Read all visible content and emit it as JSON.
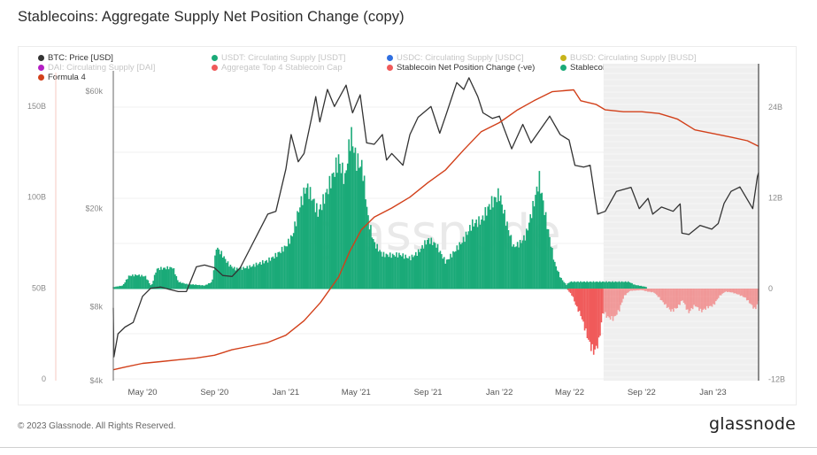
{
  "page": {
    "title": "Stablecoins: Aggregate Supply Net Position Change (copy)",
    "footer_copyright": "© 2023 Glassnode. All Rights Reserved.",
    "footer_logo": "glassnode",
    "watermark": "glassnode"
  },
  "legend": [
    {
      "label": "BTC: Price [USD]",
      "color": "#333333",
      "active": true
    },
    {
      "label": "USDT: Circulating Supply [USDT]",
      "color": "#1aaa78",
      "active": false
    },
    {
      "label": "USDC: Circulating Supply [USDC]",
      "color": "#2f6fe0",
      "active": false
    },
    {
      "label": "BUSD: Circulating Supply [BUSD]",
      "color": "#c8b41a",
      "active": false
    },
    {
      "label": "DAI: Circulating Supply [DAI]",
      "color": "#b31fc4",
      "active": false
    },
    {
      "label": "Aggregate Top 4 Stablecoin Cap",
      "color": "#f05a5a",
      "active": false
    },
    {
      "label": "Stablecoin Net Position Change (-ve)",
      "color": "#f05a5a",
      "active": true
    },
    {
      "label": "Stablecoin Net Position Change (+ve)",
      "color": "#1aaa78",
      "active": true
    },
    {
      "label": "Formula 4",
      "color": "#d2401a",
      "active": true
    }
  ],
  "chart_data": {
    "type": "line",
    "title": "Stablecoins: Aggregate Supply Net Position Change (copy)",
    "xlabel": "",
    "x_range": [
      "2020-03-12",
      "2023-03-20"
    ],
    "x_ticks": [
      {
        "date": "2020-05-01",
        "label": "May '20"
      },
      {
        "date": "2020-09-01",
        "label": "Sep '20"
      },
      {
        "date": "2021-01-01",
        "label": "Jan '21"
      },
      {
        "date": "2021-05-01",
        "label": "May '21"
      },
      {
        "date": "2021-09-01",
        "label": "Sep '21"
      },
      {
        "date": "2022-01-01",
        "label": "Jan '22"
      },
      {
        "date": "2022-05-01",
        "label": "May '22"
      },
      {
        "date": "2022-09-01",
        "label": "Sep '22"
      },
      {
        "date": "2023-01-01",
        "label": "Jan '23"
      }
    ],
    "axes": {
      "left_supply": {
        "unit": "B",
        "range": [
          0,
          165
        ],
        "ticks": [
          {
            "v": 0,
            "label": "0"
          },
          {
            "v": 50,
            "label": "50B"
          },
          {
            "v": 100,
            "label": "100B"
          },
          {
            "v": 150,
            "label": "150B"
          }
        ]
      },
      "left_price": {
        "unit": "USD",
        "scale": "log",
        "range": [
          4000,
          72000
        ],
        "ticks": [
          {
            "v": 4000,
            "label": "$4k"
          },
          {
            "v": 8000,
            "label": "$8k"
          },
          {
            "v": 20000,
            "label": "$20k"
          },
          {
            "v": 60000,
            "label": "$60k"
          }
        ]
      },
      "right_net": {
        "unit": "B",
        "range": [
          -12,
          27
        ],
        "ticks": [
          {
            "v": -12,
            "label": "-12B"
          },
          {
            "v": 0,
            "label": "0"
          },
          {
            "v": 12,
            "label": "12B"
          },
          {
            "v": 24,
            "label": "24B"
          }
        ]
      }
    },
    "grid": true,
    "legend_position": "top-left",
    "shaded_region": {
      "from": "2022-06-28",
      "to": "2023-03-20",
      "note": "grey shaded period"
    },
    "series": [
      {
        "name": "BTC: Price [USD]",
        "axis": "left_price",
        "type": "line",
        "color": "#333333",
        "points": [
          [
            "2020-03-12",
            7900
          ],
          [
            "2020-03-13",
            5000
          ],
          [
            "2020-03-20",
            6200
          ],
          [
            "2020-04-01",
            6600
          ],
          [
            "2020-04-15",
            6900
          ],
          [
            "2020-05-01",
            8800
          ],
          [
            "2020-05-15",
            9500
          ],
          [
            "2020-06-01",
            9600
          ],
          [
            "2020-06-15",
            9400
          ],
          [
            "2020-07-01",
            9200
          ],
          [
            "2020-07-15",
            9200
          ],
          [
            "2020-08-01",
            11600
          ],
          [
            "2020-08-15",
            11800
          ],
          [
            "2020-09-01",
            11500
          ],
          [
            "2020-09-15",
            10700
          ],
          [
            "2020-10-01",
            10600
          ],
          [
            "2020-10-15",
            11500
          ],
          [
            "2020-11-01",
            13800
          ],
          [
            "2020-11-15",
            16000
          ],
          [
            "2020-12-01",
            19000
          ],
          [
            "2020-12-15",
            19500
          ],
          [
            "2021-01-01",
            29000
          ],
          [
            "2021-01-10",
            40000
          ],
          [
            "2021-01-22",
            31000
          ],
          [
            "2021-02-01",
            33500
          ],
          [
            "2021-02-15",
            48000
          ],
          [
            "2021-02-21",
            57000
          ],
          [
            "2021-02-28",
            45000
          ],
          [
            "2021-03-13",
            61000
          ],
          [
            "2021-03-25",
            52000
          ],
          [
            "2021-04-14",
            63500
          ],
          [
            "2021-04-25",
            49000
          ],
          [
            "2021-05-08",
            58000
          ],
          [
            "2021-05-19",
            37000
          ],
          [
            "2021-06-01",
            36500
          ],
          [
            "2021-06-15",
            40000
          ],
          [
            "2021-06-22",
            31500
          ],
          [
            "2021-07-01",
            33500
          ],
          [
            "2021-07-20",
            30000
          ],
          [
            "2021-08-01",
            40000
          ],
          [
            "2021-08-15",
            47000
          ],
          [
            "2021-09-06",
            52000
          ],
          [
            "2021-09-21",
            40500
          ],
          [
            "2021-10-01",
            47500
          ],
          [
            "2021-10-20",
            65000
          ],
          [
            "2021-11-01",
            61000
          ],
          [
            "2021-11-10",
            68000
          ],
          [
            "2021-11-25",
            57000
          ],
          [
            "2021-12-04",
            49000
          ],
          [
            "2021-12-20",
            46500
          ],
          [
            "2022-01-01",
            47500
          ],
          [
            "2022-01-22",
            35000
          ],
          [
            "2022-02-10",
            44000
          ],
          [
            "2022-02-24",
            37000
          ],
          [
            "2022-03-28",
            47500
          ],
          [
            "2022-04-15",
            40000
          ],
          [
            "2022-04-30",
            38000
          ],
          [
            "2022-05-10",
            30000
          ],
          [
            "2022-05-25",
            29500
          ],
          [
            "2022-06-05",
            30000
          ],
          [
            "2022-06-13",
            22500
          ],
          [
            "2022-06-18",
            19000
          ],
          [
            "2022-07-01",
            19500
          ],
          [
            "2022-07-20",
            23500
          ],
          [
            "2022-08-14",
            24400
          ],
          [
            "2022-08-28",
            20000
          ],
          [
            "2022-09-12",
            22000
          ],
          [
            "2022-09-20",
            19000
          ],
          [
            "2022-10-05",
            20300
          ],
          [
            "2022-10-25",
            19500
          ],
          [
            "2022-11-06",
            20900
          ],
          [
            "2022-11-09",
            15900
          ],
          [
            "2022-11-21",
            15700
          ],
          [
            "2022-12-10",
            17100
          ],
          [
            "2022-12-30",
            16500
          ],
          [
            "2023-01-10",
            17400
          ],
          [
            "2023-01-20",
            21000
          ],
          [
            "2023-02-01",
            23500
          ],
          [
            "2023-02-16",
            24500
          ],
          [
            "2023-03-10",
            20000
          ],
          [
            "2023-03-18",
            27000
          ],
          [
            "2023-03-20",
            28000
          ]
        ]
      },
      {
        "name": "Formula 4",
        "axis": "left_supply",
        "type": "line",
        "color": "#d2401a",
        "points": [
          [
            "2020-03-12",
            5
          ],
          [
            "2020-04-01",
            6.5
          ],
          [
            "2020-05-01",
            8.5
          ],
          [
            "2020-06-01",
            9.5
          ],
          [
            "2020-07-01",
            10.5
          ],
          [
            "2020-08-01",
            11.5
          ],
          [
            "2020-09-01",
            13
          ],
          [
            "2020-10-01",
            16
          ],
          [
            "2020-11-01",
            18
          ],
          [
            "2020-12-01",
            20
          ],
          [
            "2021-01-01",
            24
          ],
          [
            "2021-02-01",
            32
          ],
          [
            "2021-03-01",
            42
          ],
          [
            "2021-04-01",
            56
          ],
          [
            "2021-04-20",
            70
          ],
          [
            "2021-05-10",
            82
          ],
          [
            "2021-06-01",
            89
          ],
          [
            "2021-07-01",
            94
          ],
          [
            "2021-08-01",
            100
          ],
          [
            "2021-09-01",
            108
          ],
          [
            "2021-10-01",
            115
          ],
          [
            "2021-11-01",
            126
          ],
          [
            "2021-12-01",
            136
          ],
          [
            "2022-01-01",
            141
          ],
          [
            "2022-02-01",
            148
          ],
          [
            "2022-03-01",
            153
          ],
          [
            "2022-04-01",
            158
          ],
          [
            "2022-05-08",
            159
          ],
          [
            "2022-05-20",
            153
          ],
          [
            "2022-06-15",
            151
          ],
          [
            "2022-07-01",
            148
          ],
          [
            "2022-08-01",
            147
          ],
          [
            "2022-09-01",
            147
          ],
          [
            "2022-10-01",
            146
          ],
          [
            "2022-11-01",
            143
          ],
          [
            "2022-12-01",
            137
          ],
          [
            "2023-01-01",
            135
          ],
          [
            "2023-02-01",
            133
          ],
          [
            "2023-03-01",
            131
          ],
          [
            "2023-03-20",
            128
          ]
        ]
      },
      {
        "name": "Stablecoin Net Position Change (+ve)",
        "axis": "right_net",
        "type": "bar",
        "color": "#1aaa78",
        "points": [
          [
            "2020-03-12",
            0.2
          ],
          [
            "2020-03-28",
            0.4
          ],
          [
            "2020-04-08",
            1.7
          ],
          [
            "2020-04-22",
            1.8
          ],
          [
            "2020-05-06",
            1.6
          ],
          [
            "2020-05-16",
            0.3
          ],
          [
            "2020-05-25",
            2.6
          ],
          [
            "2020-06-08",
            2.7
          ],
          [
            "2020-06-22",
            2.8
          ],
          [
            "2020-07-01",
            0.9
          ],
          [
            "2020-07-15",
            0.6
          ],
          [
            "2020-08-01",
            0.5
          ],
          [
            "2020-08-15",
            0.4
          ],
          [
            "2020-08-28",
            0.9
          ],
          [
            "2020-09-04",
            5.5
          ],
          [
            "2020-09-15",
            4.4
          ],
          [
            "2020-09-25",
            3.2
          ],
          [
            "2020-10-06",
            2.6
          ],
          [
            "2020-10-20",
            2.7
          ],
          [
            "2020-11-01",
            2.9
          ],
          [
            "2020-11-15",
            3.3
          ],
          [
            "2020-12-01",
            3.7
          ],
          [
            "2020-12-15",
            4.4
          ],
          [
            "2021-01-01",
            5.6
          ],
          [
            "2021-01-12",
            7.0
          ],
          [
            "2021-01-25",
            11.0
          ],
          [
            "2021-02-05",
            13.5
          ],
          [
            "2021-02-15",
            12.0
          ],
          [
            "2021-02-25",
            10.0
          ],
          [
            "2021-03-08",
            12.0
          ],
          [
            "2021-03-20",
            14.5
          ],
          [
            "2021-04-01",
            17.0
          ],
          [
            "2021-04-12",
            14.5
          ],
          [
            "2021-04-22",
            20.5
          ],
          [
            "2021-05-01",
            17.0
          ],
          [
            "2021-05-12",
            16.0
          ],
          [
            "2021-05-22",
            9.0
          ],
          [
            "2021-06-01",
            6.0
          ],
          [
            "2021-06-15",
            4.5
          ],
          [
            "2021-07-01",
            4.4
          ],
          [
            "2021-07-15",
            4.5
          ],
          [
            "2021-08-01",
            4.0
          ],
          [
            "2021-08-15",
            4.8
          ],
          [
            "2021-09-01",
            6.5
          ],
          [
            "2021-09-15",
            5.8
          ],
          [
            "2021-10-01",
            3.5
          ],
          [
            "2021-10-15",
            4.8
          ],
          [
            "2021-11-01",
            6.5
          ],
          [
            "2021-11-15",
            8.5
          ],
          [
            "2021-12-01",
            9.0
          ],
          [
            "2021-12-15",
            11.0
          ],
          [
            "2022-01-01",
            12.5
          ],
          [
            "2022-01-12",
            9.0
          ],
          [
            "2022-01-25",
            5.5
          ],
          [
            "2022-02-05",
            6.0
          ],
          [
            "2022-02-15",
            7.0
          ],
          [
            "2022-02-28",
            11.0
          ],
          [
            "2022-03-10",
            14.5
          ],
          [
            "2022-03-22",
            9.0
          ],
          [
            "2022-04-05",
            3.5
          ],
          [
            "2022-04-15",
            1.5
          ],
          [
            "2022-04-25",
            0.5
          ],
          [
            "2022-05-02",
            0.9
          ],
          [
            "2022-08-10",
            0.9
          ],
          [
            "2022-08-20",
            0.5
          ],
          [
            "2022-09-10",
            0.2
          ]
        ]
      },
      {
        "name": "Stablecoin Net Position Change (-ve)",
        "axis": "right_net",
        "type": "bar",
        "color": "#f05a5a",
        "points": [
          [
            "2022-04-28",
            -0.2
          ],
          [
            "2022-05-06",
            -1.0
          ],
          [
            "2022-05-12",
            -2.3
          ],
          [
            "2022-05-20",
            -3.5
          ],
          [
            "2022-05-28",
            -5.5
          ],
          [
            "2022-06-05",
            -7.5
          ],
          [
            "2022-06-12",
            -8.4
          ],
          [
            "2022-06-20",
            -7.0
          ],
          [
            "2022-06-27",
            -3.0
          ],
          [
            "2022-07-05",
            -3.8
          ],
          [
            "2022-07-15",
            -4.0
          ],
          [
            "2022-07-25",
            -2.8
          ],
          [
            "2022-08-02",
            -1.0
          ],
          [
            "2022-08-12",
            -0.3
          ],
          [
            "2022-09-01",
            -0.2
          ],
          [
            "2022-09-12",
            -0.4
          ],
          [
            "2022-09-22",
            -0.5
          ],
          [
            "2022-10-01",
            -1.2
          ],
          [
            "2022-10-12",
            -2.2
          ],
          [
            "2022-10-22",
            -3.0
          ],
          [
            "2022-11-01",
            -2.5
          ],
          [
            "2022-11-10",
            -1.5
          ],
          [
            "2022-11-20",
            -3.2
          ],
          [
            "2022-12-01",
            -2.2
          ],
          [
            "2022-12-12",
            -3.0
          ],
          [
            "2022-12-22",
            -2.5
          ],
          [
            "2023-01-02",
            -2.2
          ],
          [
            "2023-01-12",
            -1.0
          ],
          [
            "2023-01-22",
            -0.4
          ],
          [
            "2023-02-02",
            -0.5
          ],
          [
            "2023-02-14",
            -0.8
          ],
          [
            "2023-02-25",
            -1.2
          ],
          [
            "2023-03-06",
            -2.0
          ],
          [
            "2023-03-14",
            -2.8
          ],
          [
            "2023-03-20",
            -1.6
          ]
        ]
      }
    ]
  }
}
